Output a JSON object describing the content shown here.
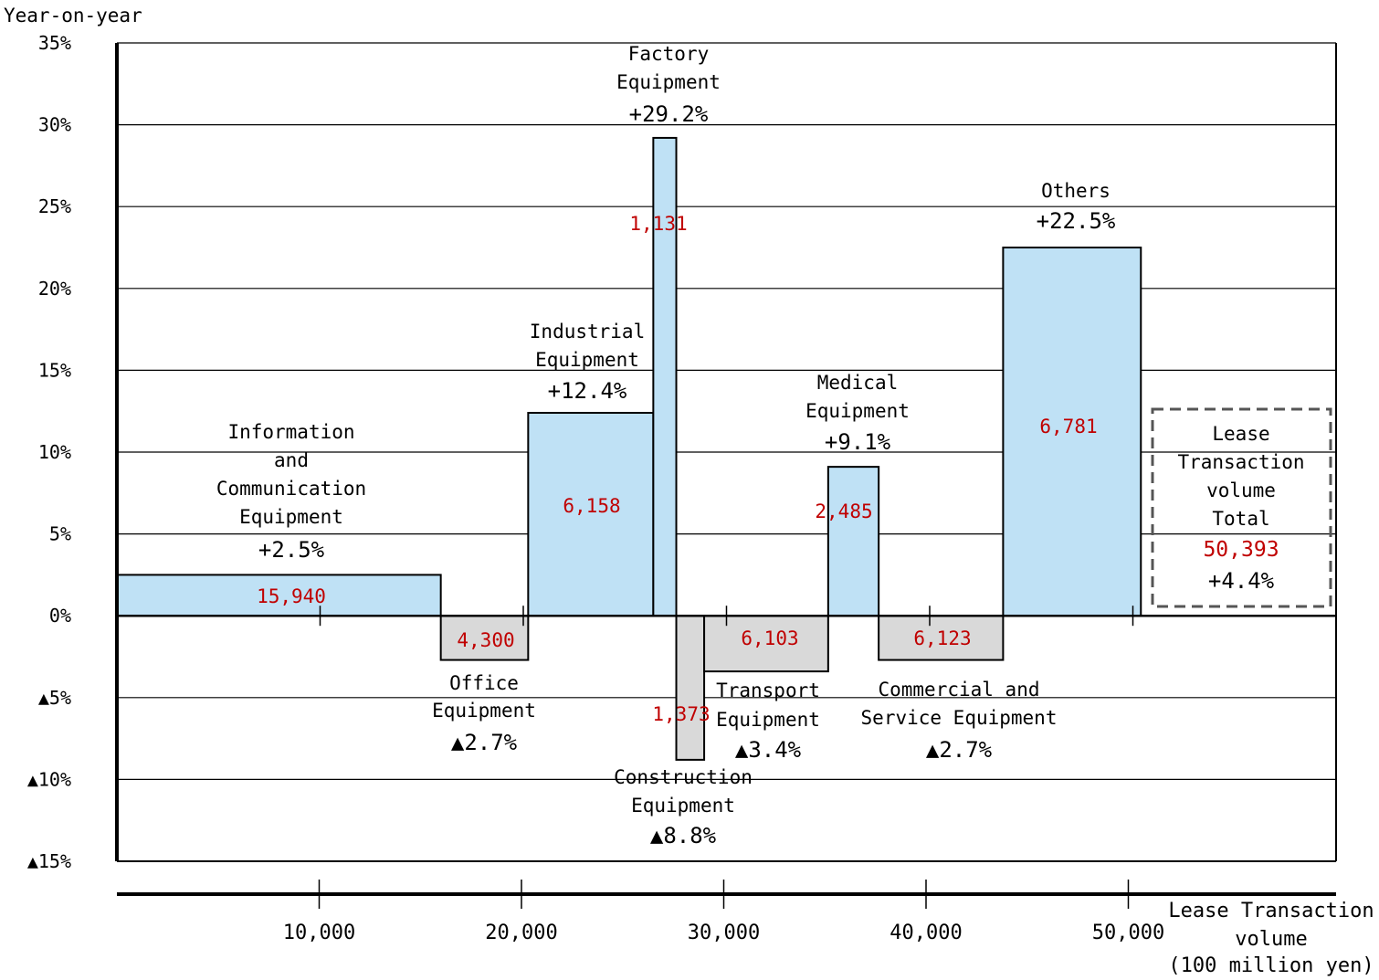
{
  "chart_data": {
    "type": "variwide_bar",
    "ylabel": "Year-on-year",
    "xlabel": [
      "Lease Transaction",
      "volume",
      "(100 million yen)"
    ],
    "ylim": [
      -15,
      35
    ],
    "xlim": [
      0,
      60000
    ],
    "y_ticks": [
      {
        "value": 35,
        "label": "35%"
      },
      {
        "value": 30,
        "label": "30%"
      },
      {
        "value": 25,
        "label": "25%"
      },
      {
        "value": 20,
        "label": "20%"
      },
      {
        "value": 15,
        "label": "15%"
      },
      {
        "value": 10,
        "label": "10%"
      },
      {
        "value": 5,
        "label": "5%"
      },
      {
        "value": 0,
        "label": "0%"
      },
      {
        "value": -5,
        "label": "▲5%"
      },
      {
        "value": -10,
        "label": "▲10%"
      },
      {
        "value": -15,
        "label": "▲15%"
      }
    ],
    "x_ticks": [
      {
        "value": 10000,
        "label": "10,000"
      },
      {
        "value": 20000,
        "label": "20,000"
      },
      {
        "value": 30000,
        "label": "30,000"
      },
      {
        "value": 40000,
        "label": "40,000"
      },
      {
        "value": 50000,
        "label": "50,000"
      }
    ],
    "grid": true,
    "positive_color": "#bfe1f5",
    "negative_color": "#d9d9d9",
    "value_color": "#c00000",
    "series": [
      {
        "name_lines": [
          "Information",
          "and",
          "Communication",
          "Equipment"
        ],
        "change_label": "+2.5%",
        "yoy": 2.5,
        "volume": 15940,
        "volume_label": "15,940"
      },
      {
        "name_lines": [
          "Office",
          "Equipment"
        ],
        "change_label": "▲2.7%",
        "yoy": -2.7,
        "volume": 4300,
        "volume_label": "4,300"
      },
      {
        "name_lines": [
          "Industrial",
          "Equipment"
        ],
        "change_label": "+12.4%",
        "yoy": 12.4,
        "volume": 6158,
        "volume_label": "6,158"
      },
      {
        "name_lines": [
          "Factory",
          "Equipment"
        ],
        "change_label": "+29.2%",
        "yoy": 29.2,
        "volume": 1131,
        "volume_label": "1,131"
      },
      {
        "name_lines": [
          "Construction",
          "Equipment"
        ],
        "change_label": "▲8.8%",
        "yoy": -8.8,
        "volume": 1373,
        "volume_label": "1,373"
      },
      {
        "name_lines": [
          "Transport",
          "Equipment"
        ],
        "change_label": "▲3.4%",
        "yoy": -3.4,
        "volume": 6103,
        "volume_label": "6,103"
      },
      {
        "name_lines": [
          "Medical",
          "Equipment"
        ],
        "change_label": "+9.1%",
        "yoy": 9.1,
        "volume": 2485,
        "volume_label": "2,485"
      },
      {
        "name_lines": [
          "Commercial and",
          "Service Equipment"
        ],
        "change_label": "▲2.7%",
        "yoy": -2.7,
        "volume": 6123,
        "volume_label": "6,123"
      },
      {
        "name_lines": [
          "Others"
        ],
        "change_label": "+22.5%",
        "yoy": 22.5,
        "volume": 6781,
        "volume_label": "6,781"
      }
    ],
    "total": {
      "label_lines": [
        "Lease",
        "Transaction",
        "volume",
        "Total"
      ],
      "volume_label": "50,393",
      "change_label": "+4.4%"
    }
  }
}
